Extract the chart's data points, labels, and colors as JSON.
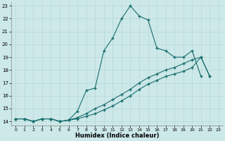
{
  "xlabel": "Humidex (Indice chaleur)",
  "xlim": [
    -0.5,
    23.5
  ],
  "ylim": [
    13.7,
    23.3
  ],
  "xticks": [
    0,
    1,
    2,
    3,
    4,
    5,
    6,
    7,
    8,
    9,
    10,
    11,
    12,
    13,
    14,
    15,
    16,
    17,
    18,
    19,
    20,
    21,
    22,
    23
  ],
  "yticks": [
    14,
    15,
    16,
    17,
    18,
    19,
    20,
    21,
    22,
    23
  ],
  "bg_color": "#cce8e8",
  "grid_color": "#b8d8d8",
  "line_color": "#1a6e6e",
  "line1_x": [
    0,
    1,
    2,
    3,
    4,
    5,
    6,
    7,
    8,
    9,
    10,
    11,
    12,
    13,
    14,
    15,
    16,
    17,
    18,
    19,
    20,
    21
  ],
  "line1_y": [
    14.2,
    14.2,
    14.0,
    14.2,
    14.2,
    14.0,
    14.1,
    14.8,
    16.4,
    16.6,
    19.5,
    20.5,
    22.0,
    23.0,
    22.2,
    21.9,
    19.7,
    19.5,
    19.0,
    19.0,
    19.5,
    17.5
  ],
  "line2_x": [
    0,
    1,
    2,
    3,
    4,
    5,
    6,
    7,
    8,
    9,
    10,
    11,
    12,
    13,
    14,
    15,
    16,
    17,
    18,
    19,
    20,
    21,
    22
  ],
  "line2_y": [
    14.2,
    14.2,
    14.0,
    14.2,
    14.2,
    14.0,
    14.1,
    14.2,
    14.4,
    14.6,
    14.9,
    15.2,
    15.6,
    16.0,
    16.5,
    16.9,
    17.2,
    17.5,
    17.7,
    17.9,
    18.2,
    19.0,
    17.5
  ],
  "line3_x": [
    0,
    1,
    2,
    3,
    4,
    5,
    6,
    7,
    8,
    9,
    10,
    11,
    12,
    13,
    14,
    15,
    16,
    17,
    18,
    19,
    20,
    21,
    22
  ],
  "line3_y": [
    14.2,
    14.2,
    14.0,
    14.2,
    14.2,
    14.0,
    14.1,
    14.3,
    14.6,
    15.0,
    15.3,
    15.7,
    16.1,
    16.5,
    17.0,
    17.4,
    17.7,
    18.0,
    18.2,
    18.5,
    18.8,
    19.0,
    17.5
  ]
}
